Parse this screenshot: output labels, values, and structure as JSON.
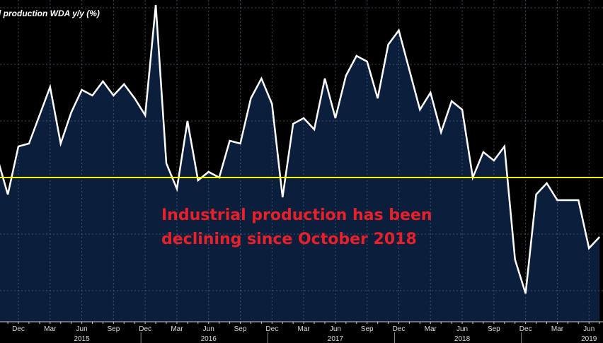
{
  "chart_data": {
    "type": "area",
    "title": "l production WDA y/y (%)",
    "xlabel": "",
    "ylabel": "",
    "ylim": [
      -5.1,
      6.2
    ],
    "y_gridlines": [
      6,
      4,
      2,
      0,
      -2,
      -4
    ],
    "grid": true,
    "reference_line": {
      "value": 0,
      "color": "#ffff00"
    },
    "x": [
      "2014-10",
      "2014-11",
      "2014-12",
      "2015-01",
      "2015-02",
      "2015-03",
      "2015-04",
      "2015-05",
      "2015-06",
      "2015-07",
      "2015-08",
      "2015-09",
      "2015-10",
      "2015-11",
      "2015-12",
      "2016-01",
      "2016-02",
      "2016-03",
      "2016-04",
      "2016-05",
      "2016-06",
      "2016-07",
      "2016-08",
      "2016-09",
      "2016-10",
      "2016-11",
      "2016-12",
      "2017-01",
      "2017-02",
      "2017-03",
      "2017-04",
      "2017-05",
      "2017-06",
      "2017-07",
      "2017-08",
      "2017-09",
      "2017-10",
      "2017-11",
      "2017-12",
      "2018-01",
      "2018-02",
      "2018-03",
      "2018-04",
      "2018-05",
      "2018-06",
      "2018-07",
      "2018-08",
      "2018-09",
      "2018-10",
      "2018-11",
      "2018-12",
      "2019-01",
      "2019-02",
      "2019-03",
      "2019-04",
      "2019-05",
      "2019-06",
      "2019-07"
    ],
    "series": [
      {
        "values": [
          0.7,
          -0.6,
          1.1,
          1.2,
          2.2,
          3.2,
          1.2,
          2.3,
          3.1,
          2.9,
          3.4,
          2.9,
          3.3,
          2.8,
          2.2,
          6.1,
          0.5,
          -0.4,
          2.0,
          -0.1,
          0.2,
          0.0,
          1.3,
          1.2,
          2.8,
          3.5,
          2.6,
          -0.7,
          1.9,
          2.1,
          1.7,
          3.5,
          2.1,
          3.6,
          4.3,
          4.1,
          2.8,
          4.7,
          5.2,
          3.8,
          2.4,
          3.0,
          1.6,
          2.7,
          2.4,
          0.0,
          0.9,
          0.6,
          1.1,
          -2.9,
          -4.1,
          -0.6,
          -0.2,
          -0.8,
          -0.8,
          -0.8,
          -2.5,
          -2.1
        ]
      }
    ],
    "x_tick_labels": [
      "Dec",
      "Mar",
      "Jun",
      "Sep",
      "Dec",
      "Mar",
      "Jun",
      "Sep",
      "Dec",
      "Mar",
      "Jun",
      "Sep",
      "Dec",
      "Mar",
      "Jun",
      "Sep",
      "Dec",
      "Mar",
      "Jun"
    ],
    "year_labels": [
      "2015",
      "2016",
      "2017",
      "2018",
      "2019"
    ],
    "annotation": [
      "Industrial production has been",
      "declining since October 2018"
    ],
    "colors": {
      "line": "#ffffff",
      "fill": "#0b1f3d",
      "annotation": "#e8202a",
      "reference": "#ffff00"
    }
  }
}
